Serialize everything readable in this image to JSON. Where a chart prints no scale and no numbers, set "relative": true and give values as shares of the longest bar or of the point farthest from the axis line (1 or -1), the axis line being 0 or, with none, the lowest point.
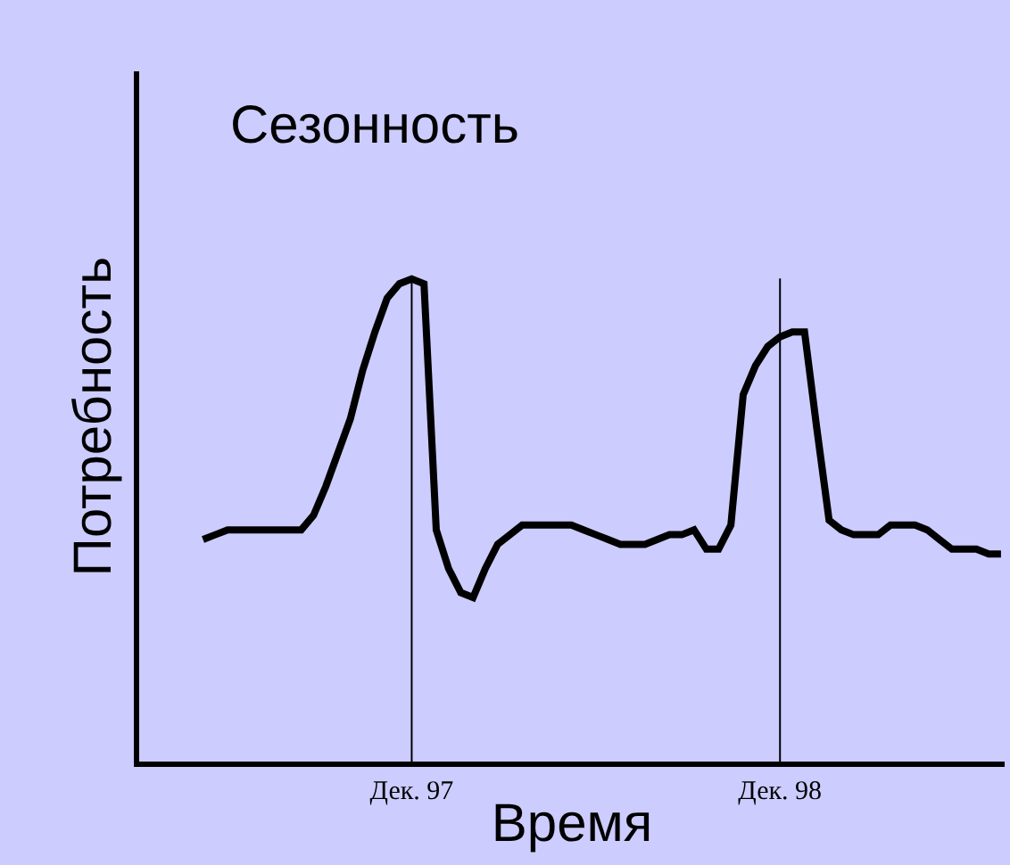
{
  "chart_data": {
    "type": "line",
    "title": "Сезонность",
    "xlabel": "Время",
    "ylabel": "Потребность",
    "relative": true,
    "color": "#000000",
    "legend": false,
    "grid": false,
    "marker": "none",
    "line_style": "solid",
    "tick_labels": "x",
    "categories": [
      null,
      null,
      null,
      null,
      null,
      null,
      null,
      null,
      null,
      null,
      null,
      null,
      null,
      null,
      null,
      null,
      null,
      "Дек. 97",
      null,
      null,
      null,
      null,
      null,
      null,
      null,
      null,
      null,
      null,
      null,
      null,
      null,
      null,
      null,
      null,
      null,
      null,
      null,
      null,
      null,
      null,
      null,
      null,
      null,
      null,
      null,
      null,
      null,
      "Дек. 98",
      null,
      null,
      null,
      null,
      null,
      null,
      null,
      null,
      null,
      null,
      null,
      null,
      null,
      null,
      null,
      null,
      null,
      null
    ],
    "values": [
      0.46,
      0.47,
      0.48,
      0.48,
      0.48,
      0.48,
      0.48,
      0.48,
      0.48,
      0.51,
      0.57,
      0.64,
      0.71,
      0.81,
      0.89,
      0.96,
      0.99,
      1.0,
      0.99,
      0.48,
      0.4,
      0.35,
      0.34,
      0.4,
      0.45,
      0.47,
      0.49,
      0.49,
      0.49,
      0.49,
      0.49,
      0.48,
      0.47,
      0.46,
      0.45,
      0.45,
      0.45,
      0.46,
      0.47,
      0.47,
      0.48,
      0.44,
      0.44,
      0.49,
      0.76,
      0.82,
      0.86,
      0.88,
      0.89,
      0.89,
      0.69,
      0.5,
      0.48,
      0.47,
      0.47,
      0.47,
      0.49,
      0.49,
      0.49,
      0.48,
      0.46,
      0.44,
      0.44,
      0.44,
      0.43,
      0.43
    ],
    "ref_lines": [
      {
        "axis": "x",
        "value": "Дек. 97",
        "color": "#000000"
      },
      {
        "axis": "x",
        "value": "Дек. 98",
        "color": "#000000"
      }
    ]
  }
}
